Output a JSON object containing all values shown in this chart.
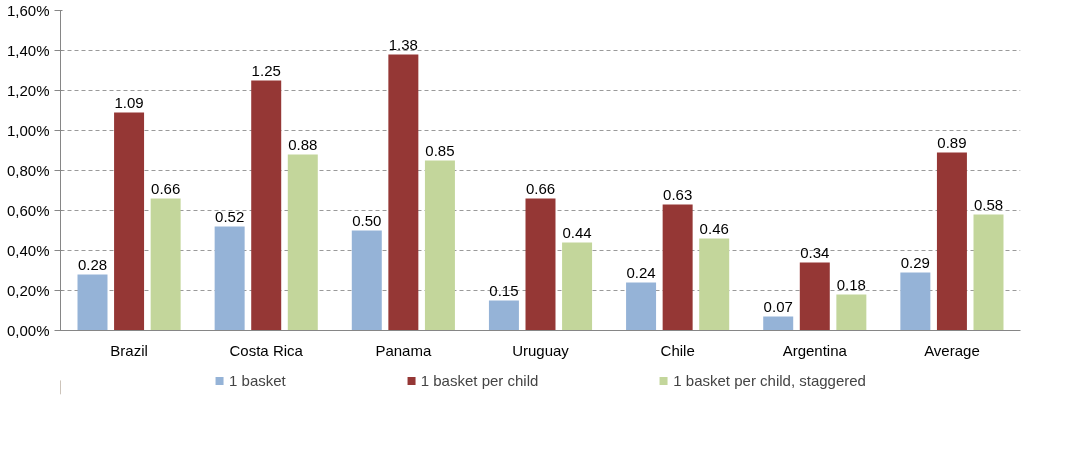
{
  "chart_data": {
    "type": "bar",
    "categories": [
      "Brazil",
      "Costa Rica",
      "Panama",
      "Uruguay",
      "Chile",
      "Argentina",
      "Average"
    ],
    "series": [
      {
        "name": "1 basket",
        "color": "#95b3d7",
        "values": [
          0.28,
          0.52,
          0.5,
          0.15,
          0.24,
          0.07,
          0.29
        ],
        "value_labels": [
          "0.28",
          "0.52",
          "0.50",
          "0.15",
          "0.24",
          "0.07",
          "0.29"
        ]
      },
      {
        "name": "1 basket per child",
        "color": "#953735",
        "values": [
          1.09,
          1.25,
          1.38,
          0.66,
          0.63,
          0.34,
          0.89
        ],
        "value_labels": [
          "1.09",
          "1.25",
          "1.38",
          "0.66",
          "0.63",
          "0.34",
          "0.89"
        ]
      },
      {
        "name": "1 basket per child, staggered",
        "color": "#c3d69b",
        "values": [
          0.66,
          0.88,
          0.85,
          0.44,
          0.46,
          0.18,
          0.58
        ],
        "value_labels": [
          "0.66",
          "0.88",
          "0.85",
          "0.44",
          "0.46",
          "0.18",
          "0.58"
        ]
      }
    ],
    "ylim": [
      0,
      1.6
    ],
    "yticks": [
      {
        "value": 0,
        "label": "0,00%"
      },
      {
        "value": 0.2,
        "label": "0,20%"
      },
      {
        "value": 0.4,
        "label": "0,40%"
      },
      {
        "value": 0.6,
        "label": "0,60%"
      },
      {
        "value": 0.8,
        "label": "0,80%"
      },
      {
        "value": 1.0,
        "label": "1,00%"
      },
      {
        "value": 1.2,
        "label": "1,20%"
      },
      {
        "value": 1.4,
        "label": "1,40%"
      },
      {
        "value": 1.6,
        "label": "1,60%"
      }
    ],
    "grid": "y",
    "legend": "bottom"
  }
}
